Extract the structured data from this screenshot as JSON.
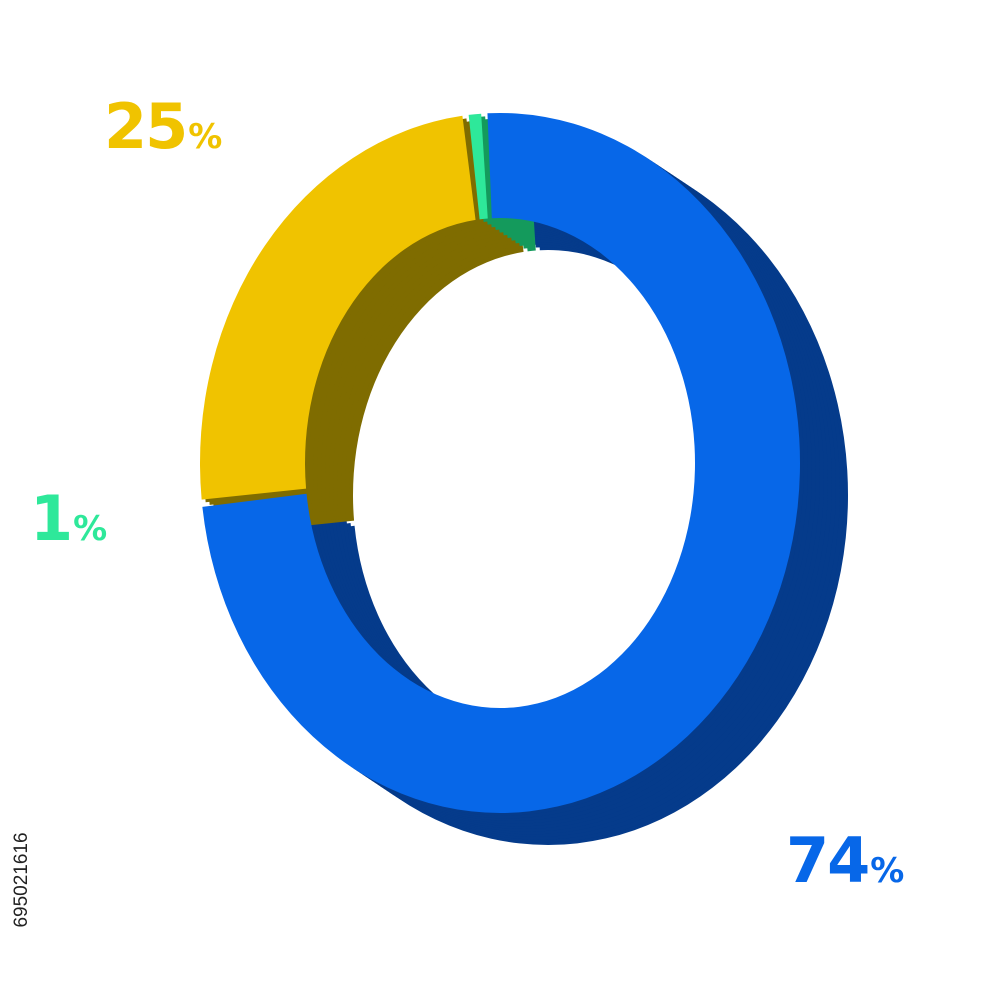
{
  "chart_data": {
    "type": "pie",
    "style": "3d-donut",
    "slices": [
      {
        "value": 74,
        "label": "74",
        "color": "#0767e8",
        "side_color": "#053b8b"
      },
      {
        "value": 25,
        "label": "25",
        "color": "#f0c300",
        "side_color": "#7f6c00"
      },
      {
        "value": 1,
        "label": "1",
        "color": "#2ee89a",
        "side_color": "#149a5c"
      }
    ],
    "percent_sign": "%"
  },
  "stock_id": "695021616"
}
